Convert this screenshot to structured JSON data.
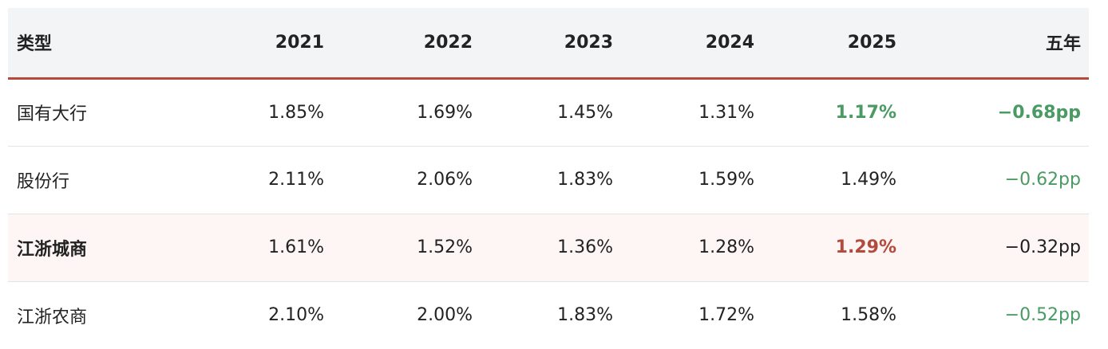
{
  "table": {
    "headers": [
      "类型",
      "2021",
      "2022",
      "2023",
      "2024",
      "2025",
      "五年"
    ],
    "rows": [
      {
        "type": "国有大行",
        "values": [
          "1.85%",
          "1.69%",
          "1.45%",
          "1.31%",
          "1.17%"
        ],
        "change": "−0.68pp"
      },
      {
        "type": "股份行",
        "values": [
          "2.11%",
          "2.06%",
          "1.83%",
          "1.59%",
          "1.49%"
        ],
        "change": "−0.62pp"
      },
      {
        "type": "江浙城商",
        "values": [
          "1.61%",
          "1.52%",
          "1.36%",
          "1.28%",
          "1.29%"
        ],
        "change": "−0.32pp"
      },
      {
        "type": "江浙农商",
        "values": [
          "2.10%",
          "2.00%",
          "1.83%",
          "1.72%",
          "1.58%"
        ],
        "change": "−0.52pp"
      }
    ]
  },
  "colors": {
    "accent_red": "#b34a3c",
    "positive_green": "#4a9a63",
    "header_bg": "#f3f4f6",
    "highlight_row_bg": "#fdf6f5"
  }
}
